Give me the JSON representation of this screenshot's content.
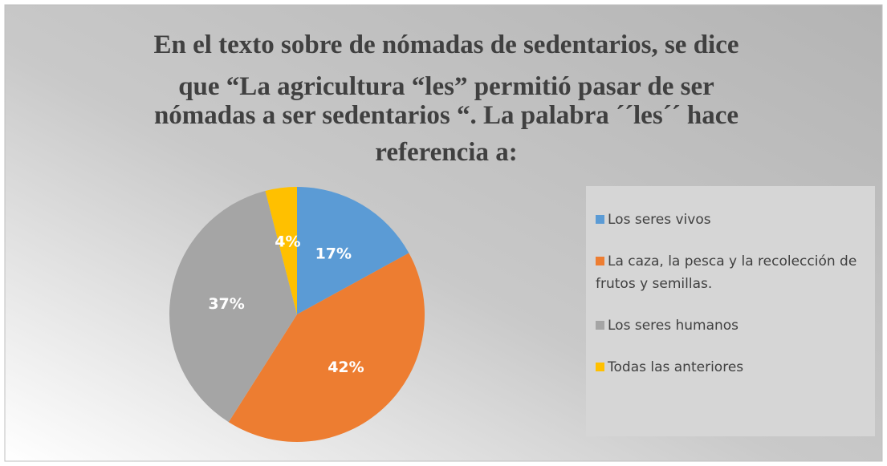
{
  "chart_data": {
    "type": "pie",
    "title": [
      "En el texto sobre de nómadas de sedentarios, se dice",
      "que “La agricultura “les” permitió pasar de ser",
      "nómadas a ser sedentarios “. La palabra ´´les´´ hace",
      "referencia a:"
    ],
    "categories": [
      "Los seres vivos",
      "La caza, la pesca y la recolección de frutos y semillas.",
      "Los seres humanos",
      "Todas las anteriores"
    ],
    "values": [
      17,
      42,
      37,
      4
    ],
    "value_labels": [
      "17%",
      "42%",
      "37%",
      "4%"
    ],
    "colors": [
      "#5b9bd5",
      "#ed7d31",
      "#a5a5a5",
      "#ffc000"
    ],
    "legend": "right"
  }
}
